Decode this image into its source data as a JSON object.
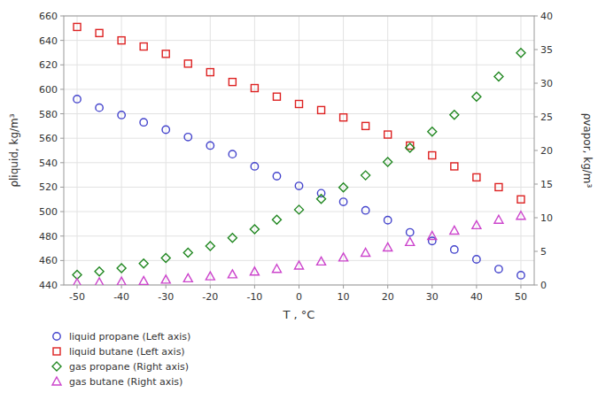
{
  "chart_data": {
    "type": "scatter",
    "x_label": "T , °C",
    "y_label": "ρliquid, kg/m³",
    "y2_label": "ρvapor, kg/m³",
    "x": [
      -50,
      -45,
      -40,
      -35,
      -30,
      -25,
      -20,
      -15,
      -10,
      -5,
      0,
      5,
      10,
      15,
      20,
      25,
      30,
      35,
      40,
      45,
      50
    ],
    "series": [
      {
        "name": "liquid propane (Left axis)",
        "color": "#4444cc",
        "marker": "circle",
        "axis": "y",
        "values": [
          592,
          585,
          579,
          573,
          567,
          561,
          554,
          547,
          537,
          529,
          521,
          515,
          508,
          501,
          493,
          483,
          476,
          469,
          461,
          453,
          448
        ]
      },
      {
        "name": "liquid butane (Left axis)",
        "color": "#dd2222",
        "marker": "square",
        "axis": "y",
        "values": [
          651,
          646,
          640,
          635,
          629,
          621,
          614,
          606,
          601,
          594,
          588,
          583,
          577,
          570,
          563,
          554,
          546,
          537,
          528,
          520,
          510
        ]
      },
      {
        "name": "gas propane (Right axis)",
        "color": "#228822",
        "marker": "diamond",
        "axis": "y2",
        "values": [
          1.5,
          2.0,
          2.5,
          3.2,
          4.0,
          4.8,
          5.8,
          7.0,
          8.3,
          9.7,
          11.2,
          12.8,
          14.5,
          16.3,
          18.3,
          20.4,
          22.8,
          25.3,
          28.0,
          31.0,
          34.5
        ]
      },
      {
        "name": "gas butane (Right axis)",
        "color": "#cc44cc",
        "marker": "triangle",
        "axis": "y2",
        "values": [
          0.3,
          0.4,
          0.5,
          0.6,
          0.8,
          1.0,
          1.3,
          1.6,
          2.0,
          2.4,
          2.9,
          3.5,
          4.1,
          4.8,
          5.6,
          6.4,
          7.3,
          8.1,
          8.9,
          9.7,
          10.3
        ]
      }
    ],
    "xlim": [
      -53,
      53
    ],
    "xticks": [
      -50,
      -40,
      -30,
      -20,
      -10,
      0,
      10,
      20,
      30,
      40,
      50
    ],
    "ylim": [
      440,
      660
    ],
    "yticks": [
      440,
      460,
      480,
      500,
      520,
      540,
      560,
      580,
      600,
      620,
      640,
      660
    ],
    "y2lim": [
      0,
      40
    ],
    "y2ticks": [
      0,
      5,
      10,
      15,
      20,
      25,
      30,
      35,
      40
    ],
    "grid": true,
    "legend": "bottom"
  }
}
